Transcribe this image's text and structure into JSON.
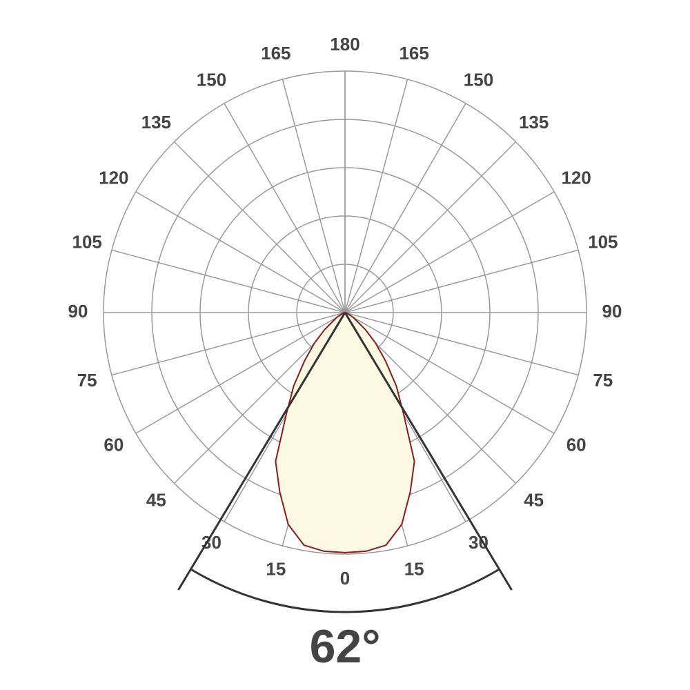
{
  "chart_data": {
    "type": "polar",
    "angle_ticks": [
      0,
      15,
      30,
      45,
      60,
      75,
      90,
      105,
      120,
      135,
      150,
      165,
      180
    ],
    "rlim": [
      0,
      5
    ],
    "rticks": [
      1,
      2,
      3,
      4,
      5
    ],
    "grid": true,
    "grid_color": "#999999",
    "series": [
      {
        "color": "#8b1a1a",
        "fill": "#fdf9e3",
        "x": [
          0,
          5,
          10,
          15,
          20,
          25,
          30,
          35,
          40,
          45,
          50,
          60,
          70,
          90
        ],
        "values": [
          4.97,
          4.96,
          4.89,
          4.54,
          3.95,
          3.4,
          2.43,
          1.85,
          1.3,
          0.9,
          0.55,
          0.2,
          0.05,
          0
        ]
      }
    ],
    "beam_angle": {
      "value": 62,
      "label": "62°"
    },
    "beam_color": "#333333"
  }
}
